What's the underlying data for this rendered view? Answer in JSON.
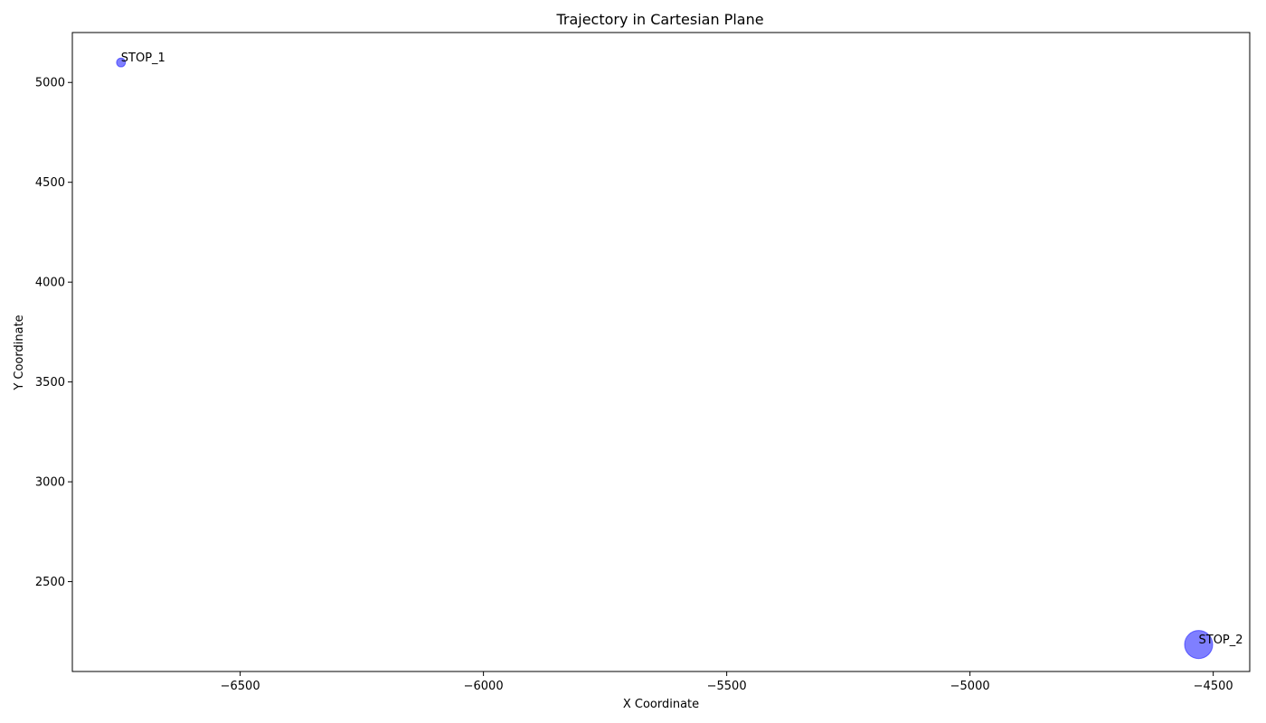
{
  "chart_data": {
    "type": "scatter",
    "title": "Trajectory in Cartesian Plane",
    "xlabel": "X Coordinate",
    "ylabel": "Y Coordinate",
    "xlim": [
      -6845,
      -4425
    ],
    "ylim": [
      2050,
      5250
    ],
    "grid": false,
    "xticks": [
      -6500,
      -6000,
      -5500,
      -5000,
      -4500
    ],
    "yticks": [
      2500,
      3000,
      3500,
      4000,
      4500,
      5000
    ],
    "xtick_labels": [
      "−6500",
      "−6000",
      "−5500",
      "−5000",
      "−4500"
    ],
    "ytick_labels": [
      "2500",
      "3000",
      "3500",
      "4000",
      "4500",
      "5000"
    ],
    "marker_color": "#0000ff",
    "marker_edge_color": "#0000ff",
    "marker_alpha": 0.5,
    "points": [
      {
        "label": "STOP_1",
        "x": -6745,
        "y": 5100,
        "size": 50
      },
      {
        "label": "STOP_2",
        "x": -4530,
        "y": 2185,
        "size": 500
      }
    ]
  }
}
